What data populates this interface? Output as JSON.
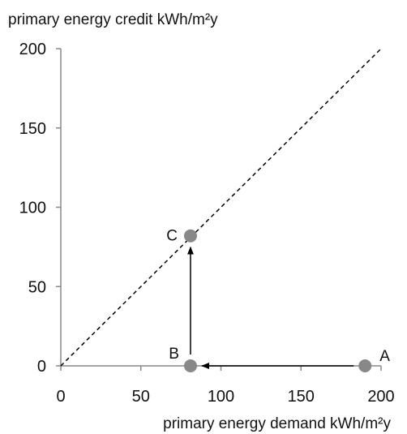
{
  "chart_data": {
    "type": "scatter",
    "title": "",
    "xlabel": "primary energy demand kWh/m²y",
    "ylabel": "primary energy credit kWh/m²y",
    "xlim": [
      0,
      200
    ],
    "ylim": [
      0,
      200
    ],
    "x_ticks": [
      "0",
      "50",
      "100",
      "150",
      "200"
    ],
    "y_ticks": [
      "0",
      "50",
      "100",
      "150",
      "200"
    ],
    "grid": false,
    "legend": "none",
    "points": [
      {
        "label": "A",
        "x": 190,
        "y": 0
      },
      {
        "label": "B",
        "x": 81,
        "y": 0
      },
      {
        "label": "C",
        "x": 81,
        "y": 82
      }
    ],
    "reference_line": {
      "style": "dashed",
      "from": [
        0,
        0
      ],
      "to": [
        200,
        200
      ]
    },
    "arrows": [
      {
        "from": "A",
        "to": "B"
      },
      {
        "from": "B",
        "to": "C"
      }
    ],
    "colors": {
      "point": "#888888",
      "line": "#000000",
      "axis": "#888888"
    }
  }
}
